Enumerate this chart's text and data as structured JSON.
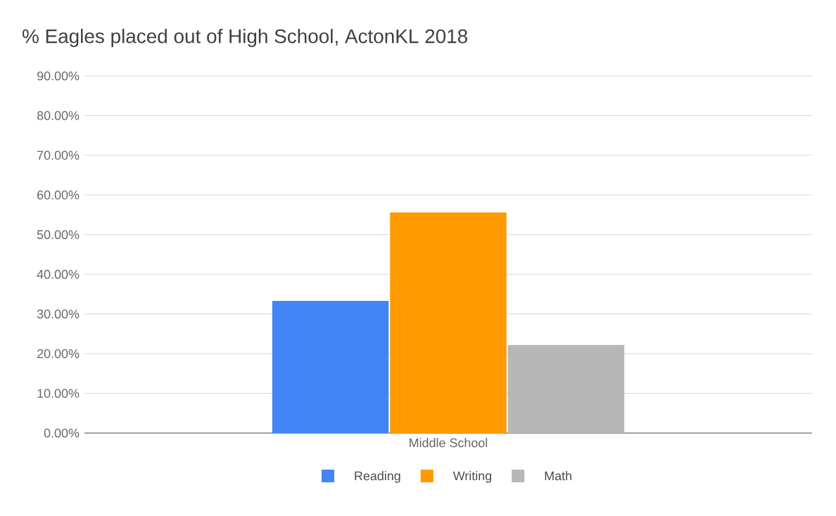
{
  "chart_data": {
    "type": "bar",
    "title": "% Eagles placed out of High School, ActonKL 2018",
    "categories": [
      "Middle School"
    ],
    "series": [
      {
        "name": "Reading",
        "color": "#4285f4",
        "values": [
          33.3
        ]
      },
      {
        "name": "Writing",
        "color": "#ff9900",
        "values": [
          55.6
        ]
      },
      {
        "name": "Math",
        "color": "#b7b7b7",
        "values": [
          22.2
        ]
      }
    ],
    "ylim": [
      0,
      90
    ],
    "yticks": [
      {
        "value": 0,
        "label": "0.00%"
      },
      {
        "value": 10,
        "label": "10.00%"
      },
      {
        "value": 20,
        "label": "20.00%"
      },
      {
        "value": 30,
        "label": "30.00%"
      },
      {
        "value": 40,
        "label": "40.00%"
      },
      {
        "value": 50,
        "label": "50.00%"
      },
      {
        "value": 60,
        "label": "60.00%"
      },
      {
        "value": 70,
        "label": "70.00%"
      },
      {
        "value": 80,
        "label": "80.00%"
      },
      {
        "value": 90,
        "label": "90.00%"
      }
    ],
    "grid": "y",
    "legend": "bottom"
  }
}
